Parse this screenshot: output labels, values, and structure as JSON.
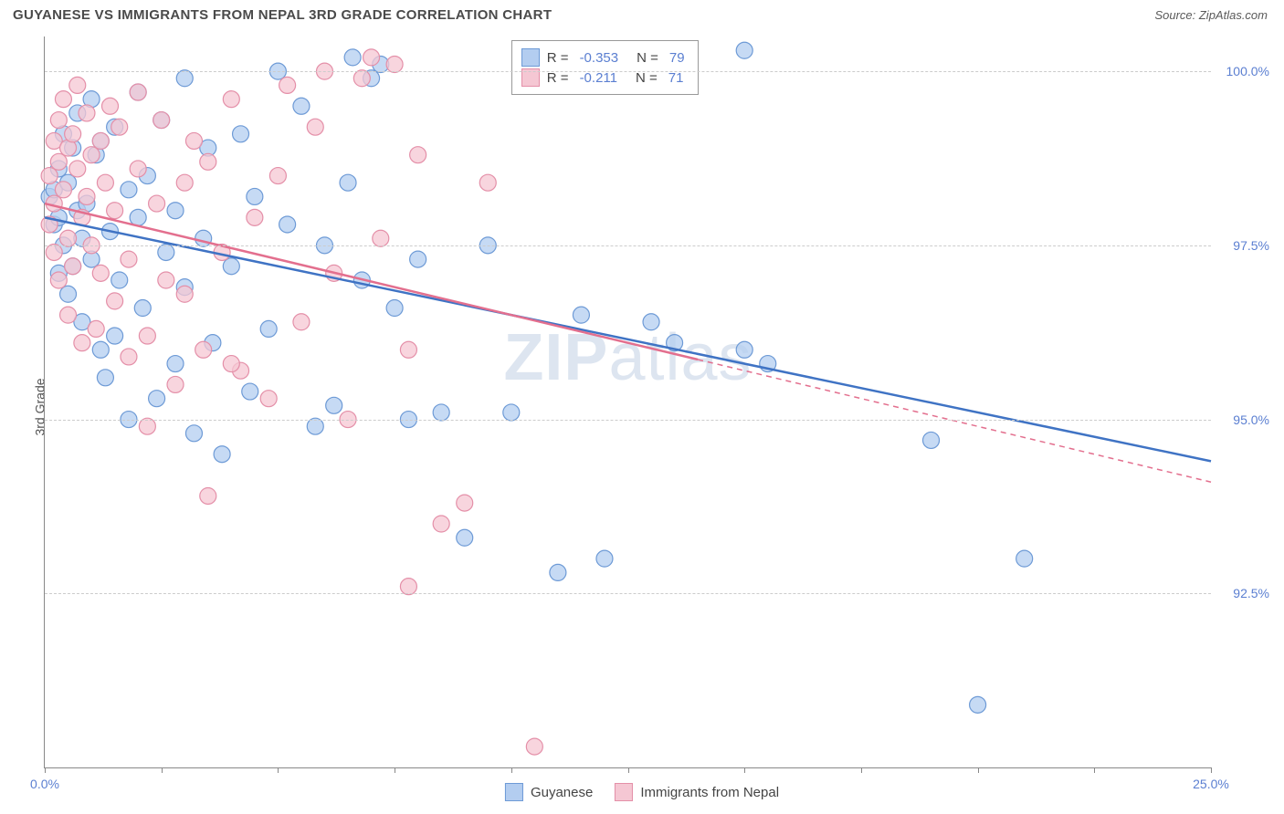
{
  "header": {
    "title": "GUYANESE VS IMMIGRANTS FROM NEPAL 3RD GRADE CORRELATION CHART",
    "source_prefix": "Source: ",
    "source": "ZipAtlas.com"
  },
  "axis": {
    "ylabel": "3rd Grade",
    "x_min": 0.0,
    "x_max": 25.0,
    "y_min": 90.0,
    "y_max": 100.5,
    "x_ticks": [
      0.0,
      25.0
    ],
    "x_tick_labels": [
      "0.0%",
      "25.0%"
    ],
    "x_minor_ticks": [
      2.5,
      5.0,
      7.5,
      10.0,
      12.5,
      15.0,
      17.5,
      20.0,
      22.5
    ],
    "y_ticks": [
      92.5,
      95.0,
      97.5,
      100.0
    ],
    "y_tick_labels": [
      "92.5%",
      "95.0%",
      "97.5%",
      "100.0%"
    ],
    "grid_color": "#d0d0d0"
  },
  "watermark": {
    "zip": "ZIP",
    "atlas": "atlas"
  },
  "series": [
    {
      "name": "Guyanese",
      "fill": "#b3cdf0",
      "stroke": "#6d9ad6",
      "line_color": "#3f73c4",
      "marker_r": 9,
      "R": "-0.353",
      "N": "79",
      "regression": {
        "x1": 0.0,
        "y1": 97.9,
        "x2": 25.0,
        "y2": 94.4,
        "dash": ""
      },
      "points": [
        [
          0.1,
          98.2
        ],
        [
          0.2,
          97.8
        ],
        [
          0.2,
          98.3
        ],
        [
          0.3,
          98.6
        ],
        [
          0.3,
          97.9
        ],
        [
          0.3,
          97.1
        ],
        [
          0.4,
          99.1
        ],
        [
          0.4,
          97.5
        ],
        [
          0.5,
          98.4
        ],
        [
          0.5,
          96.8
        ],
        [
          0.6,
          98.9
        ],
        [
          0.6,
          97.2
        ],
        [
          0.7,
          98.0
        ],
        [
          0.7,
          99.4
        ],
        [
          0.8,
          97.6
        ],
        [
          0.8,
          96.4
        ],
        [
          0.9,
          98.1
        ],
        [
          1.0,
          99.6
        ],
        [
          1.0,
          97.3
        ],
        [
          1.1,
          98.8
        ],
        [
          1.2,
          96.0
        ],
        [
          1.2,
          99.0
        ],
        [
          1.3,
          95.6
        ],
        [
          1.4,
          97.7
        ],
        [
          1.5,
          99.2
        ],
        [
          1.5,
          96.2
        ],
        [
          1.6,
          97.0
        ],
        [
          1.8,
          98.3
        ],
        [
          1.8,
          95.0
        ],
        [
          2.0,
          99.7
        ],
        [
          2.0,
          97.9
        ],
        [
          2.1,
          96.6
        ],
        [
          2.2,
          98.5
        ],
        [
          2.4,
          95.3
        ],
        [
          2.5,
          99.3
        ],
        [
          2.6,
          97.4
        ],
        [
          2.8,
          98.0
        ],
        [
          2.8,
          95.8
        ],
        [
          3.0,
          96.9
        ],
        [
          3.0,
          99.9
        ],
        [
          3.2,
          94.8
        ],
        [
          3.4,
          97.6
        ],
        [
          3.5,
          98.9
        ],
        [
          3.6,
          96.1
        ],
        [
          3.8,
          94.5
        ],
        [
          4.0,
          97.2
        ],
        [
          4.2,
          99.1
        ],
        [
          4.4,
          95.4
        ],
        [
          4.5,
          98.2
        ],
        [
          4.8,
          96.3
        ],
        [
          5.0,
          100.0
        ],
        [
          5.2,
          97.8
        ],
        [
          5.5,
          99.5
        ],
        [
          5.8,
          94.9
        ],
        [
          6.0,
          97.5
        ],
        [
          6.2,
          95.2
        ],
        [
          6.5,
          98.4
        ],
        [
          6.6,
          100.2
        ],
        [
          6.8,
          97.0
        ],
        [
          7.0,
          99.9
        ],
        [
          7.2,
          100.1
        ],
        [
          7.5,
          96.6
        ],
        [
          7.8,
          95.0
        ],
        [
          8.0,
          97.3
        ],
        [
          8.5,
          95.1
        ],
        [
          9.0,
          93.3
        ],
        [
          9.5,
          97.5
        ],
        [
          10.0,
          95.1
        ],
        [
          11.0,
          92.8
        ],
        [
          11.5,
          96.5
        ],
        [
          12.0,
          93.0
        ],
        [
          13.0,
          96.4
        ],
        [
          13.5,
          96.1
        ],
        [
          15.0,
          100.3
        ],
        [
          15.0,
          96.0
        ],
        [
          15.5,
          95.8
        ],
        [
          19.0,
          94.7
        ],
        [
          20.0,
          90.9
        ],
        [
          21.0,
          93.0
        ]
      ]
    },
    {
      "name": "Immigrants from Nepal",
      "fill": "#f5c7d3",
      "stroke": "#e48fa8",
      "line_color": "#e36f8e",
      "marker_r": 9,
      "R": "-0.211",
      "N": "71",
      "regression": {
        "x1": 0.0,
        "y1": 98.1,
        "x2": 25.0,
        "y2": 94.1,
        "dash": "6,5",
        "extrapolate_from": 14.0
      },
      "points": [
        [
          0.1,
          98.5
        ],
        [
          0.1,
          97.8
        ],
        [
          0.2,
          99.0
        ],
        [
          0.2,
          98.1
        ],
        [
          0.2,
          97.4
        ],
        [
          0.3,
          98.7
        ],
        [
          0.3,
          99.3
        ],
        [
          0.3,
          97.0
        ],
        [
          0.4,
          98.3
        ],
        [
          0.4,
          99.6
        ],
        [
          0.5,
          97.6
        ],
        [
          0.5,
          98.9
        ],
        [
          0.5,
          96.5
        ],
        [
          0.6,
          99.1
        ],
        [
          0.6,
          97.2
        ],
        [
          0.7,
          98.6
        ],
        [
          0.7,
          99.8
        ],
        [
          0.8,
          97.9
        ],
        [
          0.8,
          96.1
        ],
        [
          0.9,
          98.2
        ],
        [
          0.9,
          99.4
        ],
        [
          1.0,
          97.5
        ],
        [
          1.0,
          98.8
        ],
        [
          1.1,
          96.3
        ],
        [
          1.2,
          99.0
        ],
        [
          1.2,
          97.1
        ],
        [
          1.3,
          98.4
        ],
        [
          1.4,
          99.5
        ],
        [
          1.5,
          96.7
        ],
        [
          1.5,
          98.0
        ],
        [
          1.6,
          99.2
        ],
        [
          1.8,
          97.3
        ],
        [
          1.8,
          95.9
        ],
        [
          2.0,
          98.6
        ],
        [
          2.0,
          99.7
        ],
        [
          2.2,
          96.2
        ],
        [
          2.4,
          98.1
        ],
        [
          2.5,
          99.3
        ],
        [
          2.6,
          97.0
        ],
        [
          2.8,
          95.5
        ],
        [
          3.0,
          98.4
        ],
        [
          3.0,
          96.8
        ],
        [
          3.2,
          99.0
        ],
        [
          3.4,
          96.0
        ],
        [
          3.5,
          98.7
        ],
        [
          3.8,
          97.4
        ],
        [
          4.0,
          99.6
        ],
        [
          4.2,
          95.7
        ],
        [
          4.5,
          97.9
        ],
        [
          4.8,
          95.3
        ],
        [
          5.0,
          98.5
        ],
        [
          5.2,
          99.8
        ],
        [
          5.5,
          96.4
        ],
        [
          5.8,
          99.2
        ],
        [
          6.0,
          100.0
        ],
        [
          6.2,
          97.1
        ],
        [
          6.5,
          95.0
        ],
        [
          6.8,
          99.9
        ],
        [
          7.0,
          100.2
        ],
        [
          7.2,
          97.6
        ],
        [
          7.5,
          100.1
        ],
        [
          7.8,
          96.0
        ],
        [
          8.0,
          98.8
        ],
        [
          8.5,
          93.5
        ],
        [
          9.0,
          93.8
        ],
        [
          9.5,
          98.4
        ],
        [
          7.8,
          92.6
        ],
        [
          10.5,
          90.3
        ],
        [
          3.5,
          93.9
        ],
        [
          4.0,
          95.8
        ],
        [
          2.2,
          94.9
        ]
      ]
    }
  ],
  "legend": {
    "items": [
      {
        "label": "Guyanese",
        "fill": "#b3cdf0",
        "stroke": "#6d9ad6"
      },
      {
        "label": "Immigrants from Nepal",
        "fill": "#f5c7d3",
        "stroke": "#e48fa8"
      }
    ]
  },
  "correlation_box": {
    "rows": [
      {
        "fill": "#b3cdf0",
        "stroke": "#6d9ad6",
        "R": "-0.353",
        "N": "79"
      },
      {
        "fill": "#f5c7d3",
        "stroke": "#e48fa8",
        "R": "-0.211",
        "N": "71"
      }
    ]
  }
}
